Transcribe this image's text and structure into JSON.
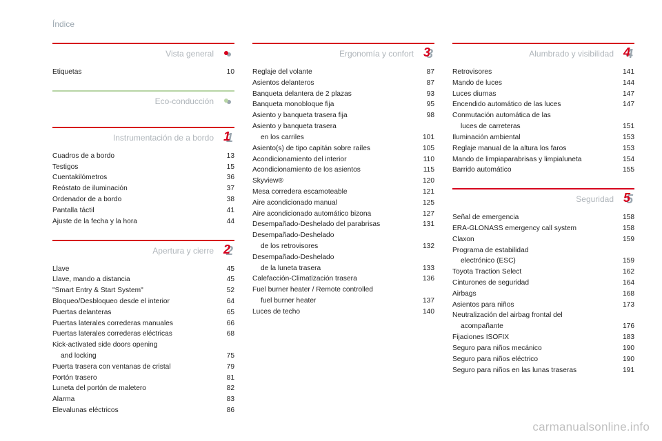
{
  "header": "Índice",
  "watermark": "carmanualsonline.info",
  "badge_colors": {
    "dot_front": "#d6001c",
    "dot_back": "#9aa6af",
    "eco_front": "#b7d4a5",
    "red_front": "#d6001c",
    "gray_back": "#9aa6af",
    "num_color": "#ffffff"
  },
  "col1": {
    "sections": [
      {
        "title": "Vista general",
        "rule": "red",
        "badge": {
          "type": "dot"
        },
        "items": [
          {
            "label": "Etiquetas",
            "page": "10"
          }
        ]
      },
      {
        "title": "Eco-conducción",
        "rule": "alt",
        "badge": {
          "type": "eco"
        },
        "items": []
      },
      {
        "title": "Instrumentación de a bordo",
        "rule": "red",
        "badge": {
          "type": "num",
          "value": "1"
        },
        "items": [
          {
            "label": "Cuadros de a bordo",
            "page": "13"
          },
          {
            "label": "Testigos",
            "page": "15"
          },
          {
            "label": "Cuentakilómetros",
            "page": "36"
          },
          {
            "label": "Reóstato de iluminación",
            "page": "37"
          },
          {
            "label": "Ordenador de a bordo",
            "page": "38"
          },
          {
            "label": "Pantalla táctil",
            "page": "41"
          },
          {
            "label": "Ajuste de la fecha y la hora",
            "page": "44"
          }
        ]
      },
      {
        "title": "Apertura y cierre",
        "rule": "red",
        "badge": {
          "type": "num",
          "value": "2"
        },
        "items": [
          {
            "label": "Llave",
            "page": "45"
          },
          {
            "label": "Llave, mando a distancia",
            "page": "45"
          },
          {
            "label": "\"Smart Entry & Start System\"",
            "page": "52"
          },
          {
            "label": "Bloqueo/Desbloqueo desde el interior",
            "page": "64"
          },
          {
            "label": "Puertas delanteras",
            "page": "65"
          },
          {
            "label": "Puertas laterales correderas manuales",
            "page": "66"
          },
          {
            "label": "Puertas laterales correderas eléctricas",
            "page": "68"
          },
          {
            "label": "Kick-activated side doors opening",
            "page": ""
          },
          {
            "label": "and locking",
            "page": "75",
            "indent": true
          },
          {
            "label": "Puerta trasera con ventanas de cristal",
            "page": "79"
          },
          {
            "label": "Portón trasero",
            "page": "81"
          },
          {
            "label": "Luneta del portón de maletero",
            "page": "82"
          },
          {
            "label": "Alarma",
            "page": "83"
          },
          {
            "label": "Elevalunas eléctricos",
            "page": "86"
          }
        ]
      }
    ]
  },
  "col2": {
    "sections": [
      {
        "title": "Ergonomía y confort",
        "rule": "red",
        "badge": {
          "type": "num",
          "value": "3"
        },
        "items": [
          {
            "label": "Reglaje del volante",
            "page": "87"
          },
          {
            "label": "Asientos delanteros",
            "page": "87"
          },
          {
            "label": "Banqueta delantera de 2 plazas",
            "page": "93"
          },
          {
            "label": "Banqueta monobloque fija",
            "page": "95"
          },
          {
            "label": "Asiento y banqueta trasera fija",
            "page": "98"
          },
          {
            "label": "Asiento y banqueta trasera",
            "page": ""
          },
          {
            "label": "en los carriles",
            "page": "101",
            "indent": true
          },
          {
            "label": "Asiento(s) de tipo capitán sobre raíles",
            "page": "105"
          },
          {
            "label": "Acondicionamiento del interior",
            "page": "110"
          },
          {
            "label": "Acondicionamiento de los asientos",
            "page": "115"
          },
          {
            "label": "Skyview®",
            "page": "120"
          },
          {
            "label": "Mesa corredera escamoteable",
            "page": "121"
          },
          {
            "label": "Aire acondicionado manual",
            "page": "125"
          },
          {
            "label": "Aire acondicionado automático bizona",
            "page": "127"
          },
          {
            "label": "Desempañado-Deshelado del parabrisas",
            "page": "131"
          },
          {
            "label": "Desempañado-Deshelado",
            "page": ""
          },
          {
            "label": "de los retrovisores",
            "page": "132",
            "indent": true
          },
          {
            "label": "Desempañado-Deshelado",
            "page": ""
          },
          {
            "label": "de la luneta trasera",
            "page": "133",
            "indent": true
          },
          {
            "label": "Calefacción-Climatización trasera",
            "page": "136"
          },
          {
            "label": "Fuel burner heater / Remote controlled",
            "page": ""
          },
          {
            "label": "fuel burner heater",
            "page": "137",
            "indent": true
          },
          {
            "label": "Luces de techo",
            "page": "140"
          }
        ]
      }
    ]
  },
  "col3": {
    "sections": [
      {
        "title": "Alumbrado y visibilidad",
        "rule": "red",
        "badge": {
          "type": "num",
          "value": "4"
        },
        "items": [
          {
            "label": "Retrovisores",
            "page": "141"
          },
          {
            "label": "Mando de luces",
            "page": "144"
          },
          {
            "label": "Luces diurnas",
            "page": "147"
          },
          {
            "label": "Encendido automático de las luces",
            "page": "147"
          },
          {
            "label": "Conmutación automática de las",
            "page": ""
          },
          {
            "label": "luces de carreteras",
            "page": "151",
            "indent": true
          },
          {
            "label": "Iluminación ambiental",
            "page": "153"
          },
          {
            "label": "Reglaje manual de la altura los faros",
            "page": "153"
          },
          {
            "label": "Mando de limpiaparabrisas y limpialuneta",
            "page": "154"
          },
          {
            "label": "Barrido automático",
            "page": "155"
          }
        ]
      },
      {
        "title": "Seguridad",
        "rule": "red",
        "badge": {
          "type": "num",
          "value": "5"
        },
        "items": [
          {
            "label": "Señal de emergencia",
            "page": "158"
          },
          {
            "label": "ERA-GLONASS emergency call system",
            "page": "158"
          },
          {
            "label": "Claxon",
            "page": "159"
          },
          {
            "label": "Programa de estabilidad",
            "page": ""
          },
          {
            "label": "electrónico (ESC)",
            "page": "159",
            "indent": true
          },
          {
            "label": "Toyota Traction Select",
            "page": "162"
          },
          {
            "label": "Cinturones de seguridad",
            "page": "164"
          },
          {
            "label": "Airbags",
            "page": "168"
          },
          {
            "label": "Asientos para niños",
            "page": "173"
          },
          {
            "label": "Neutralización del airbag frontal del",
            "page": ""
          },
          {
            "label": "acompañante",
            "page": "176",
            "indent": true
          },
          {
            "label": "Fijaciones ISOFIX",
            "page": "183"
          },
          {
            "label": "Seguro para niños mecánico",
            "page": "190"
          },
          {
            "label": "Seguro para niños eléctrico",
            "page": "190"
          },
          {
            "label": "Seguro para niños en las lunas traseras",
            "page": "191"
          }
        ]
      }
    ]
  }
}
